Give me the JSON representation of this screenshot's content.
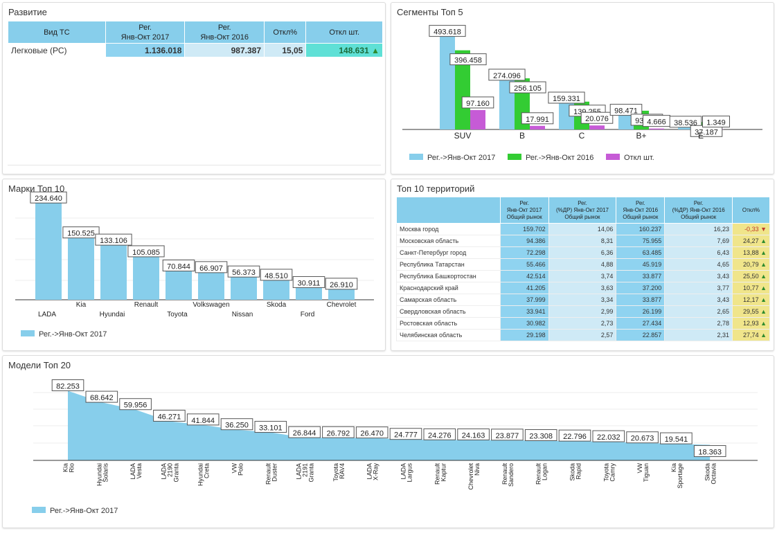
{
  "colors": {
    "reg2017": "#87ceeb",
    "reg2016": "#33cc33",
    "otkl": "#c65bd6",
    "header": "#87ceeb"
  },
  "razvitie": {
    "title": "Развитие",
    "headers": [
      "Вид ТС",
      "Рег.\nЯнв-Окт 2017",
      "Рег.\nЯнв-Окт 2016",
      "Откл%",
      "Откл шт."
    ],
    "row": {
      "name": "Легковые (РС)",
      "v2017": "1.136.018",
      "v2016": "987.387",
      "pct": "15,05",
      "diff": "148.631"
    }
  },
  "segmenty": {
    "title": "Сегменты Топ 5",
    "legend": [
      "Рег.->Янв-Окт 2017",
      "Рег.->Янв-Окт 2016",
      "Откл шт."
    ]
  },
  "marki": {
    "title": "Марки Топ 10",
    "legend": "Рег.->Янв-Окт 2017"
  },
  "territorii": {
    "title": "Топ 10 территорий",
    "headers": [
      "",
      "Рег.\nЯнв-Окт 2017\nОбщий рынок",
      "Рег.\n(%ДР) Янв-Окт 2017\nОбщий рынок",
      "Рег.\nЯнв-Окт 2016\nОбщий рынок",
      "Рег.\n(%ДР) Янв-Окт 2016\nОбщий рынок",
      "Откл%"
    ],
    "rows": [
      {
        "name": "Москва город",
        "a": "159.702",
        "b": "14,06",
        "c": "160.237",
        "d": "16,23",
        "e": "-0,33",
        "dir": "down"
      },
      {
        "name": "Московская область",
        "a": "94.386",
        "b": "8,31",
        "c": "75.955",
        "d": "7,69",
        "e": "24,27",
        "dir": "up"
      },
      {
        "name": "Санкт-Петербург город",
        "a": "72.298",
        "b": "6,36",
        "c": "63.485",
        "d": "6,43",
        "e": "13,88",
        "dir": "up"
      },
      {
        "name": "Республика Татарстан",
        "a": "55.466",
        "b": "4,88",
        "c": "45.919",
        "d": "4,65",
        "e": "20,79",
        "dir": "up"
      },
      {
        "name": "Республика Башкортостан",
        "a": "42.514",
        "b": "3,74",
        "c": "33.877",
        "d": "3,43",
        "e": "25,50",
        "dir": "up"
      },
      {
        "name": "Краснодарский край",
        "a": "41.205",
        "b": "3,63",
        "c": "37.200",
        "d": "3,77",
        "e": "10,77",
        "dir": "up"
      },
      {
        "name": "Самарская область",
        "a": "37.999",
        "b": "3,34",
        "c": "33.877",
        "d": "3,43",
        "e": "12,17",
        "dir": "up"
      },
      {
        "name": "Свердловская область",
        "a": "33.941",
        "b": "2,99",
        "c": "26.199",
        "d": "2,65",
        "e": "29,55",
        "dir": "up"
      },
      {
        "name": "Ростовская область",
        "a": "30.982",
        "b": "2,73",
        "c": "27.434",
        "d": "2,78",
        "e": "12,93",
        "dir": "up"
      },
      {
        "name": "Челябинская область",
        "a": "29.198",
        "b": "2,57",
        "c": "22.857",
        "d": "2,31",
        "e": "27,74",
        "dir": "up"
      }
    ]
  },
  "modeli": {
    "title": "Модели Топ 20",
    "legend": "Рег.->Янв-Окт 2017"
  },
  "chart_data": [
    {
      "type": "bar",
      "categories": [
        "SUV",
        "B",
        "C",
        "B+",
        "E"
      ],
      "series": [
        {
          "name": "Рег.->Янв-Окт 2017",
          "values": [
            493618,
            274096,
            159331,
            98471,
            38536
          ],
          "labels": [
            "493.618",
            "274.096",
            "159.331",
            "98.471",
            "38.536"
          ]
        },
        {
          "name": "Рег.->Янв-Окт 2016",
          "values": [
            396458,
            256105,
            139255,
            93805,
            37187
          ],
          "labels": [
            "396.458",
            "256.105",
            "139.255",
            "93.805",
            "37.187"
          ]
        },
        {
          "name": "Откл шт.",
          "values": [
            97160,
            17991,
            20076,
            4666,
            1349
          ],
          "labels": [
            "97.160",
            "17.991",
            "20.076",
            "4.666",
            "1.349"
          ]
        }
      ]
    },
    {
      "type": "bar",
      "categories": [
        "LADA",
        "Kia",
        "Hyundai",
        "Renault",
        "Toyota",
        "Volkswagen",
        "Nissan",
        "Skoda",
        "Ford",
        "Chevrolet"
      ],
      "series": [
        {
          "name": "Рег.->Янв-Окт 2017",
          "values": [
            234640,
            150525,
            133106,
            105085,
            70844,
            66907,
            56373,
            48510,
            30911,
            26910
          ],
          "labels": [
            "234.640",
            "150.525",
            "133.106",
            "105.085",
            "70.844",
            "66.907",
            "56.373",
            "48.510",
            "30.911",
            "26.910"
          ]
        }
      ]
    },
    {
      "type": "area",
      "categories": [
        "Kia Rio",
        "Hyundai Solaris",
        "LADA Vesta",
        "LADA 2190 Granta",
        "Hyundai Creta",
        "VW Polo",
        "Renault Duster",
        "LADA 2191 Granta",
        "Toyota RAV4",
        "LADA X-Ray",
        "LADA Largus",
        "Renault Kaptur",
        "Chevrolet Niva",
        "Renault Sandero",
        "Renault Logan",
        "Skoda Rapid",
        "Toyota Camry",
        "VW Tiguan",
        "Kia Sportage",
        "Skoda Octavia"
      ],
      "series": [
        {
          "name": "Рег.->Янв-Окт 2017",
          "values": [
            82253,
            68642,
            59956,
            46271,
            41844,
            36250,
            33101,
            26844,
            26792,
            26470,
            24777,
            24276,
            24163,
            23877,
            23308,
            22796,
            22032,
            20673,
            19541,
            18363
          ],
          "labels": [
            "82.253",
            "68.642",
            "59.956",
            "46.271",
            "41.844",
            "36.250",
            "33.101",
            "26.844",
            "26.792",
            "26.470",
            "24.777",
            "24.276",
            "24.163",
            "23.877",
            "23.308",
            "22.796",
            "22.032",
            "20.673",
            "19.541",
            "18.363"
          ]
        }
      ]
    }
  ]
}
